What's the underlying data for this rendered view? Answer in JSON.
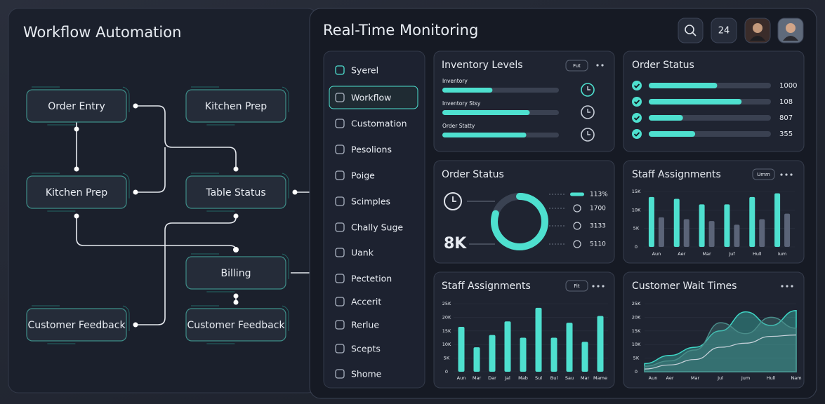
{
  "left_panel": {
    "title": "Workflow Automation",
    "nodes": [
      {
        "label": "Order Entry"
      },
      {
        "label": "Kitchen Prep"
      },
      {
        "label": "Kitchen Prep"
      },
      {
        "label": "Table Status"
      },
      {
        "label": "Billing"
      },
      {
        "label": "Customer Feedback"
      },
      {
        "label": "Customer Feedback"
      }
    ]
  },
  "header": {
    "title": "Real-Time Monitoring",
    "badge": "24"
  },
  "sidebar": {
    "active": 1,
    "items": [
      "Syerel",
      "Workflow",
      "Customation",
      "Pesolions",
      "Poige",
      "Scimples",
      "Chally Suge",
      "Uank",
      "Pectetion",
      "Accerit",
      "Rerlue",
      "Scepts",
      "Shome"
    ]
  },
  "inventory": {
    "title": "Inventory Levels",
    "button": "Fut",
    "xlim": [
      0,
      100
    ],
    "rows": [
      {
        "label": "Inventory",
        "value": 43
      },
      {
        "label": "Inventory Stsy",
        "value": 75
      },
      {
        "label": "Order Statty",
        "value": 72
      }
    ]
  },
  "order_list": {
    "title": "Order Status",
    "xlim": [
      0,
      100
    ],
    "rows": [
      {
        "label": "1000",
        "value": 56
      },
      {
        "label": "108",
        "value": 76
      },
      {
        "label": "807",
        "value": 28
      },
      {
        "label": "355",
        "value": 38
      }
    ]
  },
  "donut": {
    "title": "Order Status",
    "center": "8K",
    "value": 80,
    "range": [
      0,
      100
    ],
    "legend": [
      "113%",
      "1700",
      "3133",
      "5110"
    ]
  },
  "chart_data": [
    {
      "type": "bar",
      "title": "Staff Assignments",
      "button": "Umm",
      "categories": [
        "Aun",
        "Aer",
        "Mar",
        "Juf",
        "Hull",
        "Ium"
      ],
      "series": [
        {
          "color": "#4ee0cf",
          "values": [
            13500,
            13000,
            11500,
            11500,
            13500,
            14500
          ]
        },
        {
          "color": "#5b6478",
          "values": [
            8000,
            7500,
            7000,
            6000,
            7500,
            9000
          ]
        }
      ],
      "ylim": [
        0,
        15000
      ],
      "yticks": [
        0,
        {
          "value": 5000,
          "label": "5K"
        },
        {
          "value": 10000,
          "label": "10K"
        },
        {
          "value": 15000,
          "label": "15K"
        }
      ]
    },
    {
      "type": "bar",
      "title": "Staff Assignments",
      "button": "Fit",
      "categories": [
        "Aun",
        "Mar",
        "Dar",
        "Jal",
        "Mab",
        "Sul",
        "Bul",
        "Sau",
        "Mar",
        "Mame"
      ],
      "series": [
        {
          "color": "#4ee0cf",
          "values": [
            16500,
            9000,
            13500,
            18500,
            12500,
            23500,
            12500,
            18000,
            11000,
            20500
          ]
        }
      ],
      "ylim": [
        0,
        25000
      ],
      "yticks": [
        0,
        {
          "value": 5000,
          "label": "5K"
        },
        {
          "value": 10000,
          "label": "10K"
        },
        {
          "value": 15000,
          "label": "15K"
        },
        {
          "value": 20000,
          "label": "20K"
        },
        {
          "value": 25000,
          "label": "25K"
        }
      ]
    },
    {
      "type": "area",
      "title": "Customer Wait Times",
      "categories": [
        "Aun",
        "Aer",
        "Mar",
        "Jul",
        "Jum",
        "Hull",
        "Nam"
      ],
      "series": [
        {
          "color": "#3fd6c6",
          "fill": true,
          "values": [
            3000,
            6000,
            9000,
            15000,
            22000,
            17000,
            22500
          ]
        },
        {
          "color": "#4a8d8a",
          "fill": true,
          "values": [
            2000,
            4000,
            8000,
            18000,
            14000,
            20000,
            16000
          ]
        },
        {
          "color": "#c9d3dc",
          "fill": false,
          "values": [
            1000,
            2500,
            4500,
            9000,
            10500,
            13000,
            13500
          ]
        }
      ],
      "ylim": [
        0,
        25000
      ],
      "yticks": [
        0,
        {
          "value": 5000,
          "label": "5K"
        },
        {
          "value": 10000,
          "label": "10K"
        },
        {
          "value": 15000,
          "label": "15K"
        },
        {
          "value": 20000,
          "label": "20K"
        },
        {
          "value": 25000,
          "label": "25K"
        }
      ]
    }
  ]
}
